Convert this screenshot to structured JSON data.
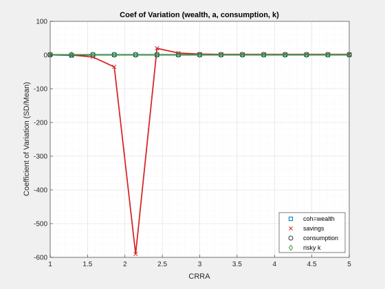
{
  "chart_data": {
    "type": "line",
    "title": "Coef of Variation (wealth, a, consumption, k)",
    "xlabel": "CRRA",
    "ylabel": "Coefficient of Variation (SD/Mean)",
    "xlim": [
      1,
      5
    ],
    "ylim": [
      -600,
      100
    ],
    "xticks": [
      1,
      1.5,
      2,
      2.5,
      3,
      3.5,
      4,
      4.5,
      5
    ],
    "xtick_labels": [
      "1",
      "1.5",
      "2",
      "2.5",
      "3",
      "3.5",
      "4",
      "4.5",
      "5"
    ],
    "yticks": [
      100,
      0,
      -100,
      -200,
      -300,
      -400,
      -500,
      -600
    ],
    "ytick_labels": [
      "100",
      "0",
      "-100",
      "-200",
      "-300",
      "-400",
      "-500",
      "-600"
    ],
    "grid": true,
    "legend_position": "bottom-right",
    "x": [
      1,
      1.2857,
      1.5714,
      1.8571,
      2.1429,
      2.4286,
      2.7143,
      3.0,
      3.2857,
      3.5714,
      3.8571,
      4.1429,
      4.4286,
      4.7143,
      5.0
    ],
    "series": [
      {
        "name": "coh=wealth",
        "marker": "square",
        "color": "#0072BD",
        "values": [
          1,
          -1,
          0.8,
          0.9,
          0.9,
          1,
          1,
          1,
          1,
          1,
          1,
          1,
          1,
          1,
          1
        ]
      },
      {
        "name": "savings",
        "marker": "x",
        "color": "#D62728",
        "values": [
          1,
          0,
          -6,
          -35,
          -590,
          20,
          6,
          3,
          2,
          2,
          2,
          2,
          2,
          2,
          2
        ]
      },
      {
        "name": "consumption",
        "marker": "circle",
        "color": "#333333",
        "values": [
          0.5,
          0.5,
          0.5,
          0.5,
          0.5,
          0.5,
          0.5,
          0.5,
          0.5,
          0.5,
          0.5,
          0.5,
          0.5,
          0.5,
          0.5
        ]
      },
      {
        "name": "risky k",
        "marker": "diamond",
        "color": "#3A9A4A",
        "values": [
          1,
          1,
          1,
          1,
          1,
          1,
          1,
          1,
          1,
          1,
          1,
          1,
          1,
          1,
          1
        ]
      }
    ]
  }
}
